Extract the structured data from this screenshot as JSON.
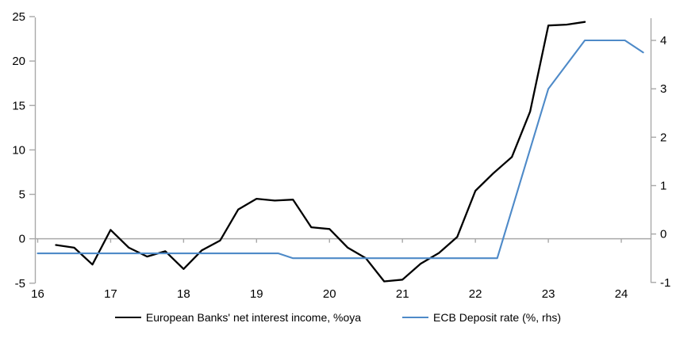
{
  "chart_data": {
    "type": "line",
    "title": "",
    "description": "Dual-axis line chart: European banks net interest income (%oya, left axis) vs ECB deposit rate (%, right axis), 2016-2024",
    "grid": "zero-line-only",
    "legend_position": "bottom-center",
    "axis_color": "#A8A8A8",
    "x_axis": {
      "min": 15.962,
      "max": 24.402,
      "ticks": [
        16,
        17,
        18,
        19,
        20,
        21,
        22,
        23,
        24
      ]
    },
    "left_axis": {
      "min": -5.02,
      "max": 24.91,
      "ticks": [
        25,
        20,
        15,
        10,
        5,
        0,
        -5
      ]
    },
    "right_axis": {
      "min": -1.02,
      "max": 4.475,
      "ticks": [
        4,
        3,
        2,
        1,
        0,
        -1
      ]
    },
    "series": [
      {
        "name": "European Banks' net interest income, %oya",
        "axis": "left",
        "color": "#000000",
        "stroke_width": 2.3,
        "x": [
          16.25,
          16.5,
          16.75,
          17.0,
          17.25,
          17.5,
          17.75,
          18.0,
          18.25,
          18.5,
          18.75,
          19.0,
          19.25,
          19.5,
          19.75,
          20.0,
          20.25,
          20.5,
          20.75,
          21.0,
          21.25,
          21.5,
          21.75,
          22.0,
          22.25,
          22.5,
          22.75,
          23.0,
          23.25,
          23.5
        ],
        "values": [
          -0.7,
          -1.0,
          -2.9,
          1.0,
          -1.0,
          -2.0,
          -1.4,
          -3.4,
          -1.3,
          -0.2,
          3.3,
          4.5,
          4.3,
          4.4,
          1.3,
          1.1,
          -1.0,
          -2.2,
          -4.8,
          -4.6,
          -2.8,
          -1.6,
          0.2,
          5.4,
          7.4,
          9.2,
          14.3,
          24.0,
          24.1,
          24.4
        ]
      },
      {
        "name": "ECB Deposit rate (%, rhs)",
        "axis": "right",
        "color": "#4E8AC8",
        "stroke_width": 2.1,
        "x": [
          16.0,
          19.3,
          19.5,
          22.3,
          23.0,
          23.5,
          24.05,
          24.3
        ],
        "values": [
          -0.4,
          -0.4,
          -0.5,
          -0.5,
          3.0,
          4.0,
          4.0,
          3.75
        ]
      }
    ]
  }
}
